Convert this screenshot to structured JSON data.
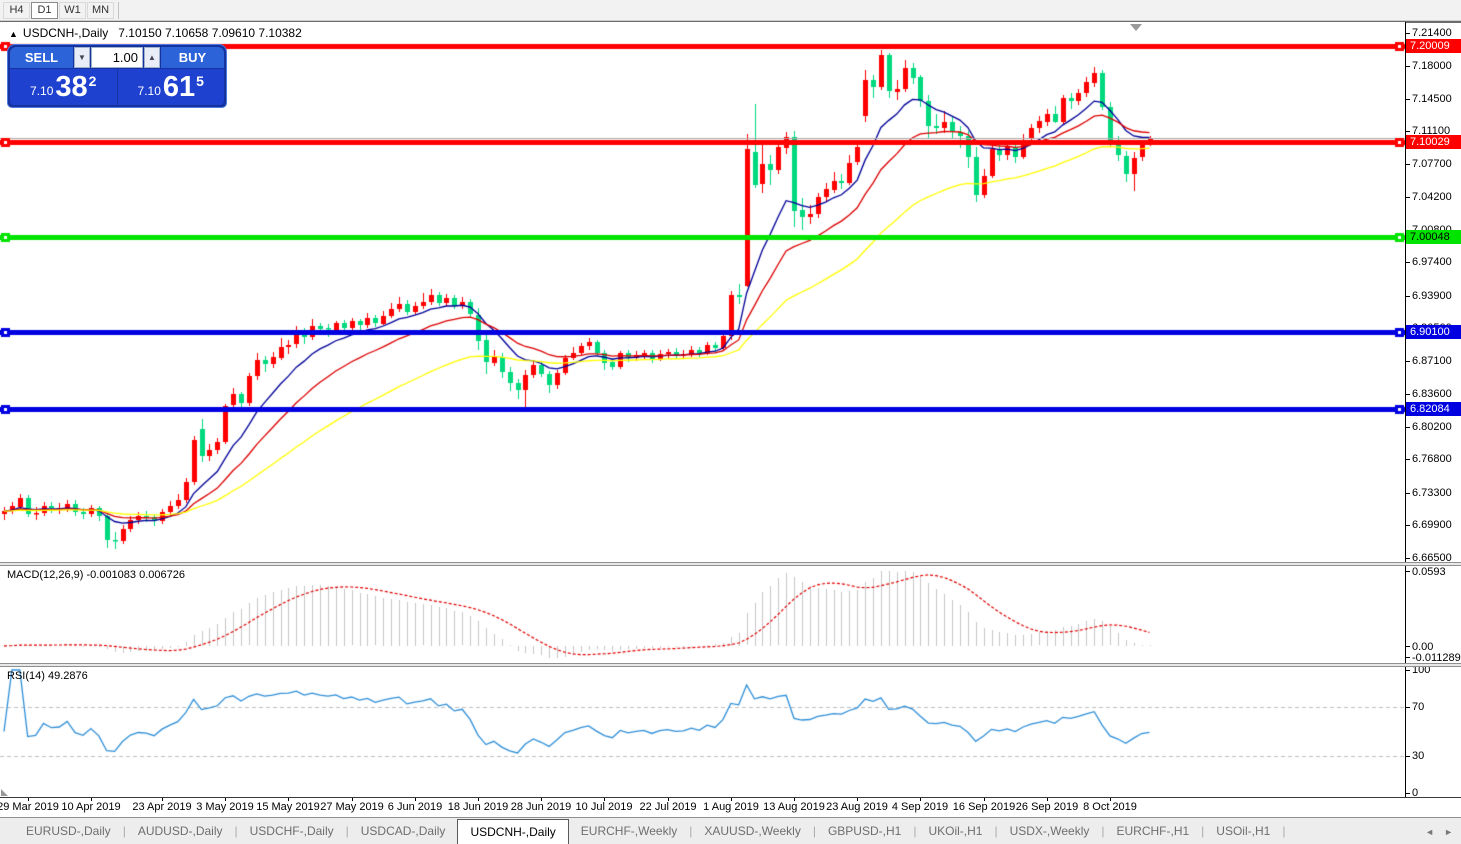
{
  "toolbar": {
    "timeframes": [
      {
        "label": "H4",
        "active": false
      },
      {
        "label": "D1",
        "active": true
      },
      {
        "label": "W1",
        "active": false
      },
      {
        "label": "MN",
        "active": false
      }
    ]
  },
  "window": {
    "collapse_arrow": "▲",
    "title_symbol": "USDCNH-,Daily",
    "title_ohlc": "7.10150 7.10658 7.09610 7.10382"
  },
  "trade_panel": {
    "sell_label": "SELL",
    "buy_label": "BUY",
    "volume": "1.00",
    "spin_down": "▼",
    "spin_up": "▲",
    "sell_price": {
      "prefix": "7.10",
      "big": "38",
      "sup": "2"
    },
    "buy_price": {
      "prefix": "7.10",
      "big": "61",
      "sup": "5"
    }
  },
  "colors": {
    "background": "#ffffff",
    "bull_candle": "#ff0000",
    "bear_candle": "#00d97e",
    "bid_line": "#aaaaaa",
    "axis_text": "#000000",
    "trade_panel_blue": "#1f41d0"
  },
  "chart_data": {
    "type": "candlestick",
    "symbol": "USDCNH-",
    "timeframe": "Daily",
    "price_axis": {
      "top_price": 7.2255,
      "bottom_price": 6.66077,
      "ticks": [
        "7.21400",
        "7.18000",
        "7.14500",
        "7.11100",
        "7.07700",
        "7.04200",
        "7.00800",
        "6.97400",
        "6.93900",
        "6.90500",
        "6.87100",
        "6.83600",
        "6.80200",
        "6.76800",
        "6.73300",
        "6.69900",
        "6.66500"
      ]
    },
    "hlines": [
      {
        "price": 7.20009,
        "label": "7.20009",
        "color": "#ff0000",
        "text_color": "#ffffff",
        "thickness": 5
      },
      {
        "price": 7.10029,
        "label": "7.10029",
        "color": "#ff0000",
        "text_color": "#ffffff",
        "thickness": 5
      },
      {
        "price": 7.00048,
        "label": "7.00048",
        "color": "#00e400",
        "text_color": "#000000",
        "thickness": 5
      },
      {
        "price": 6.901,
        "label": "6.90100",
        "color": "#0000e0",
        "text_color": "#ffffff",
        "thickness": 5
      },
      {
        "price": 6.82084,
        "label": "6.82084",
        "color": "#0000e0",
        "text_color": "#ffffff",
        "thickness": 5
      }
    ],
    "current_price": 7.10382,
    "moving_averages": [
      {
        "period": 9,
        "color": "#000099"
      },
      {
        "period": 18,
        "color": "#dd0000"
      },
      {
        "period": 40,
        "color": "#ffff00"
      }
    ],
    "x_labels": [
      {
        "text": "29 Mar 2019",
        "index": 3
      },
      {
        "text": "10 Apr 2019",
        "index": 11
      },
      {
        "text": "23 Apr 2019",
        "index": 20
      },
      {
        "text": "3 May 2019",
        "index": 28
      },
      {
        "text": "15 May 2019",
        "index": 36
      },
      {
        "text": "27 May 2019",
        "index": 44
      },
      {
        "text": "6 Jun 2019",
        "index": 52
      },
      {
        "text": "18 Jun 2019",
        "index": 60
      },
      {
        "text": "28 Jun 2019",
        "index": 68
      },
      {
        "text": "10 Jul 2019",
        "index": 76
      },
      {
        "text": "22 Jul 2019",
        "index": 84
      },
      {
        "text": "1 Aug 2019",
        "index": 92
      },
      {
        "text": "13 Aug 2019",
        "index": 100
      },
      {
        "text": "23 Aug 2019",
        "index": 108
      },
      {
        "text": "4 Sep 2019",
        "index": 116
      },
      {
        "text": "16 Sep 2019",
        "index": 124
      },
      {
        "text": "26 Sep 2019",
        "index": 132
      },
      {
        "text": "8 Oct 2019",
        "index": 140
      }
    ],
    "candles": [
      [
        6.711,
        6.7185,
        6.705,
        6.714
      ],
      [
        6.714,
        6.723,
        6.71,
        6.719
      ],
      [
        6.719,
        6.732,
        6.715,
        6.728
      ],
      [
        6.728,
        6.7305,
        6.708,
        6.7115
      ],
      [
        6.7115,
        6.718,
        6.704,
        6.712
      ],
      [
        6.712,
        6.723,
        6.7085,
        6.719
      ],
      [
        6.719,
        6.7235,
        6.7115,
        6.7165
      ],
      [
        6.7165,
        6.722,
        6.7105,
        6.717
      ],
      [
        6.717,
        6.726,
        6.7135,
        6.7215
      ],
      [
        6.7215,
        6.7255,
        6.709,
        6.713
      ],
      [
        6.713,
        6.7175,
        6.706,
        6.7105
      ],
      [
        6.7105,
        6.7205,
        6.7075,
        6.717
      ],
      [
        6.717,
        6.719,
        6.7035,
        6.709
      ],
      [
        6.709,
        6.7125,
        6.676,
        6.684
      ],
      [
        6.684,
        6.6925,
        6.675,
        6.6825
      ],
      [
        6.6825,
        6.6995,
        6.6795,
        6.695
      ],
      [
        6.695,
        6.7085,
        6.6915,
        6.7045
      ],
      [
        6.7045,
        6.7135,
        6.7005,
        6.7085
      ],
      [
        6.7085,
        6.7145,
        6.703,
        6.7075
      ],
      [
        6.7075,
        6.711,
        6.6985,
        6.7035
      ],
      [
        6.7035,
        6.7165,
        6.7005,
        6.713
      ],
      [
        6.713,
        6.7245,
        6.7095,
        6.7195
      ],
      [
        6.7195,
        6.732,
        6.716,
        6.7255
      ],
      [
        6.7255,
        6.749,
        6.723,
        6.744
      ],
      [
        6.744,
        6.793,
        6.742,
        6.788
      ],
      [
        6.8,
        6.81,
        6.765,
        6.772
      ],
      [
        6.772,
        6.784,
        6.766,
        6.778
      ],
      [
        6.778,
        6.79,
        6.773,
        6.786
      ],
      [
        6.786,
        6.826,
        6.784,
        6.824
      ],
      [
        6.824,
        6.843,
        6.818,
        6.836
      ],
      [
        6.836,
        6.839,
        6.821,
        6.827
      ],
      [
        6.827,
        6.858,
        6.824,
        6.855
      ],
      [
        6.855,
        6.879,
        6.851,
        6.872
      ],
      [
        6.872,
        6.876,
        6.859,
        6.868
      ],
      [
        6.868,
        6.88,
        6.863,
        6.875
      ],
      [
        6.875,
        6.895,
        6.872,
        6.886
      ],
      [
        6.886,
        6.893,
        6.878,
        6.888
      ],
      [
        6.888,
        6.908,
        6.885,
        6.902
      ],
      [
        6.902,
        6.906,
        6.889,
        6.896
      ],
      [
        6.896,
        6.9145,
        6.893,
        6.908
      ],
      [
        6.908,
        6.911,
        6.899,
        6.905
      ],
      [
        6.905,
        6.91,
        6.896,
        6.9035
      ],
      [
        6.9035,
        6.913,
        6.9,
        6.9105
      ],
      [
        6.9105,
        6.914,
        6.901,
        6.9055
      ],
      [
        6.9055,
        6.916,
        6.902,
        6.9125
      ],
      [
        6.9125,
        6.915,
        6.903,
        6.9085
      ],
      [
        6.9085,
        6.9215,
        6.906,
        6.9155
      ],
      [
        6.9155,
        6.919,
        6.906,
        6.9105
      ],
      [
        6.9105,
        6.923,
        6.908,
        6.9185
      ],
      [
        6.9185,
        6.9315,
        6.916,
        6.9255
      ],
      [
        6.9255,
        6.938,
        6.922,
        6.9305
      ],
      [
        6.9305,
        6.935,
        6.919,
        6.9225
      ],
      [
        6.9225,
        6.933,
        6.919,
        6.9285
      ],
      [
        6.9285,
        6.9425,
        6.926,
        6.9325
      ],
      [
        6.9325,
        6.9465,
        6.93,
        6.9395
      ],
      [
        6.9395,
        6.943,
        6.928,
        6.9315
      ],
      [
        6.9315,
        6.941,
        6.928,
        6.9365
      ],
      [
        6.9365,
        6.94,
        6.925,
        6.9285
      ],
      [
        6.9285,
        6.938,
        6.9255,
        6.9325
      ],
      [
        6.9325,
        6.936,
        6.916,
        6.9195
      ],
      [
        6.9195,
        6.926,
        6.8825,
        6.8925
      ],
      [
        6.8925,
        6.899,
        6.8575,
        6.8695
      ],
      [
        6.8695,
        6.883,
        6.866,
        6.8755
      ],
      [
        6.8755,
        6.879,
        6.8525,
        6.8595
      ],
      [
        6.8595,
        6.865,
        6.8395,
        6.8475
      ],
      [
        6.8475,
        6.852,
        6.8315,
        6.8405
      ],
      [
        6.8405,
        6.862,
        6.8195,
        6.8565
      ],
      [
        6.8565,
        6.872,
        6.853,
        6.8665
      ],
      [
        6.8665,
        6.87,
        6.854,
        6.8575
      ],
      [
        6.8575,
        6.86,
        6.8375,
        6.8455
      ],
      [
        6.8455,
        6.862,
        6.842,
        6.8585
      ],
      [
        6.8585,
        6.877,
        6.856,
        6.8745
      ],
      [
        6.8745,
        6.8855,
        6.872,
        6.8795
      ],
      [
        6.8795,
        6.89,
        6.876,
        6.8865
      ],
      [
        6.8865,
        6.8955,
        6.883,
        6.8905
      ],
      [
        6.8905,
        6.893,
        6.876,
        6.8795
      ],
      [
        6.8795,
        6.883,
        6.8625,
        6.8695
      ],
      [
        6.8695,
        6.874,
        6.861,
        6.8645
      ],
      [
        6.8645,
        6.881,
        6.862,
        6.8795
      ],
      [
        6.8795,
        6.883,
        6.87,
        6.8745
      ],
      [
        6.8745,
        6.881,
        6.8705,
        6.8775
      ],
      [
        6.8775,
        6.883,
        6.873,
        6.8795
      ],
      [
        6.8795,
        6.882,
        6.868,
        6.8735
      ],
      [
        6.8735,
        6.882,
        6.87,
        6.8785
      ],
      [
        6.8785,
        6.884,
        6.874,
        6.8805
      ],
      [
        6.8805,
        6.8845,
        6.873,
        6.8775
      ],
      [
        6.8775,
        6.882,
        6.873,
        6.8785
      ],
      [
        6.8785,
        6.8865,
        6.875,
        6.8825
      ],
      [
        6.8825,
        6.8855,
        6.875,
        6.8795
      ],
      [
        6.8795,
        6.891,
        6.877,
        6.8875
      ],
      [
        6.8875,
        6.891,
        6.879,
        6.8845
      ],
      [
        6.8845,
        6.9025,
        6.882,
        6.8975
      ],
      [
        6.8975,
        6.9445,
        6.8935,
        6.9405
      ],
      [
        6.9405,
        6.9515,
        6.931,
        6.9385
      ],
      [
        6.9495,
        7.1085,
        6.9485,
        7.0925
      ],
      [
        7.0895,
        7.1395,
        7.0515,
        7.0555
      ],
      [
        7.0555,
        7.0965,
        7.0465,
        7.0765
      ],
      [
        7.0765,
        7.0865,
        7.0555,
        7.0705
      ],
      [
        7.0705,
        7.1005,
        7.0675,
        7.0945
      ],
      [
        7.0945,
        7.1105,
        7.087,
        7.1055
      ],
      [
        7.1055,
        7.1115,
        7.0115,
        7.0285
      ],
      [
        7.0285,
        7.041,
        7.0075,
        7.0215
      ],
      [
        7.0215,
        7.0345,
        7.0145,
        7.0245
      ],
      [
        7.0245,
        7.047,
        7.0205,
        7.0425
      ],
      [
        7.0425,
        7.057,
        7.038,
        7.0505
      ],
      [
        7.0505,
        7.0685,
        7.0465,
        7.0595
      ],
      [
        7.0595,
        7.067,
        7.051,
        7.0575
      ],
      [
        7.0575,
        7.0865,
        7.055,
        7.0785
      ],
      [
        7.0785,
        7.1005,
        7.076,
        7.0945
      ],
      [
        7.1265,
        7.1755,
        7.1215,
        7.1645
      ],
      [
        7.1645,
        7.1705,
        7.1465,
        7.1575
      ],
      [
        7.1575,
        7.196,
        7.154,
        7.1905
      ],
      [
        7.1905,
        7.193,
        7.1455,
        7.1525
      ],
      [
        7.1525,
        7.165,
        7.144,
        7.1555
      ],
      [
        7.1555,
        7.1855,
        7.152,
        7.1775
      ],
      [
        7.1775,
        7.1825,
        7.161,
        7.1675
      ],
      [
        7.1675,
        7.1705,
        7.1375,
        7.1425
      ],
      [
        7.1425,
        7.1495,
        7.1045,
        7.1165
      ],
      [
        7.1165,
        7.129,
        7.108,
        7.1145
      ],
      [
        7.1145,
        7.132,
        7.1095,
        7.1205
      ],
      [
        7.1205,
        7.127,
        7.104,
        7.1105
      ],
      [
        7.1105,
        7.117,
        7.0935,
        7.1065
      ],
      [
        7.1065,
        7.111,
        7.0725,
        7.0845
      ],
      [
        7.0845,
        7.095,
        7.0375,
        7.0445
      ],
      [
        7.0445,
        7.0715,
        7.0415,
        7.0645
      ],
      [
        7.0645,
        7.0975,
        7.0615,
        7.0925
      ],
      [
        7.0925,
        7.0995,
        7.0795,
        7.0865
      ],
      [
        7.0865,
        7.1005,
        7.0815,
        7.0945
      ],
      [
        7.0945,
        7.0995,
        7.0775,
        7.0845
      ],
      [
        7.0845,
        7.1085,
        7.082,
        7.1025
      ],
      [
        7.1025,
        7.1185,
        7.0985,
        7.1145
      ],
      [
        7.1145,
        7.127,
        7.1095,
        7.1215
      ],
      [
        7.1215,
        7.1345,
        7.117,
        7.1295
      ],
      [
        7.1295,
        7.138,
        7.1205,
        7.1215
      ],
      [
        7.1215,
        7.1495,
        7.119,
        7.1465
      ],
      [
        7.1465,
        7.151,
        7.134,
        7.1435
      ],
      [
        7.1435,
        7.1555,
        7.139,
        7.1515
      ],
      [
        7.1515,
        7.1685,
        7.148,
        7.1625
      ],
      [
        7.1625,
        7.1785,
        7.158,
        7.1725
      ],
      [
        7.1725,
        7.175,
        7.1335,
        7.1365
      ],
      [
        7.1365,
        7.142,
        7.0945,
        7.0985
      ],
      [
        7.0985,
        7.106,
        7.0795,
        7.0855
      ],
      [
        7.0855,
        7.0905,
        7.0585,
        7.0665
      ],
      [
        7.0665,
        7.0895,
        7.0485,
        7.0835
      ],
      [
        7.0835,
        7.1025,
        7.0805,
        7.0995
      ],
      [
        7.1015,
        7.10658,
        7.0961,
        7.10382
      ]
    ],
    "macd": {
      "label": "MACD(12,26,9)",
      "value_text": "-0.001083 0.006726",
      "fast": 12,
      "slow": 26,
      "signal": 9,
      "axis_top_text": "0.0593",
      "axis_zero_text": "0.00",
      "axis_bottom_text": "-0.011289",
      "hist_color": "#c6c6c6",
      "signal_color": "#e00000"
    },
    "rsi": {
      "label": "RSI(14)",
      "value_text": "49.2876",
      "period": 14,
      "levels": [
        70,
        30
      ],
      "axis_ticks": [
        100,
        70,
        30,
        0
      ],
      "line_color": "#2f8fd8",
      "level_color": "#c0c0c0"
    }
  },
  "tab_bar": {
    "tabs": [
      {
        "label": "EURUSD-,Daily",
        "active": false
      },
      {
        "label": "AUDUSD-,Daily",
        "active": false
      },
      {
        "label": "USDCHF-,Daily",
        "active": false
      },
      {
        "label": "USDCAD-,Daily",
        "active": false
      },
      {
        "label": "USDCNH-,Daily",
        "active": true
      },
      {
        "label": "EURCHF-,Weekly",
        "active": false
      },
      {
        "label": "XAUUSD-,Weekly",
        "active": false
      },
      {
        "label": "GBPUSD-,H1",
        "active": false
      },
      {
        "label": "UKOil-,H1",
        "active": false
      },
      {
        "label": "USDX-,Weekly",
        "active": false
      },
      {
        "label": "EURCHF-,H1",
        "active": false
      },
      {
        "label": "USOil-,H1",
        "active": false
      }
    ],
    "scroll_left": "◄",
    "scroll_right": "►"
  }
}
